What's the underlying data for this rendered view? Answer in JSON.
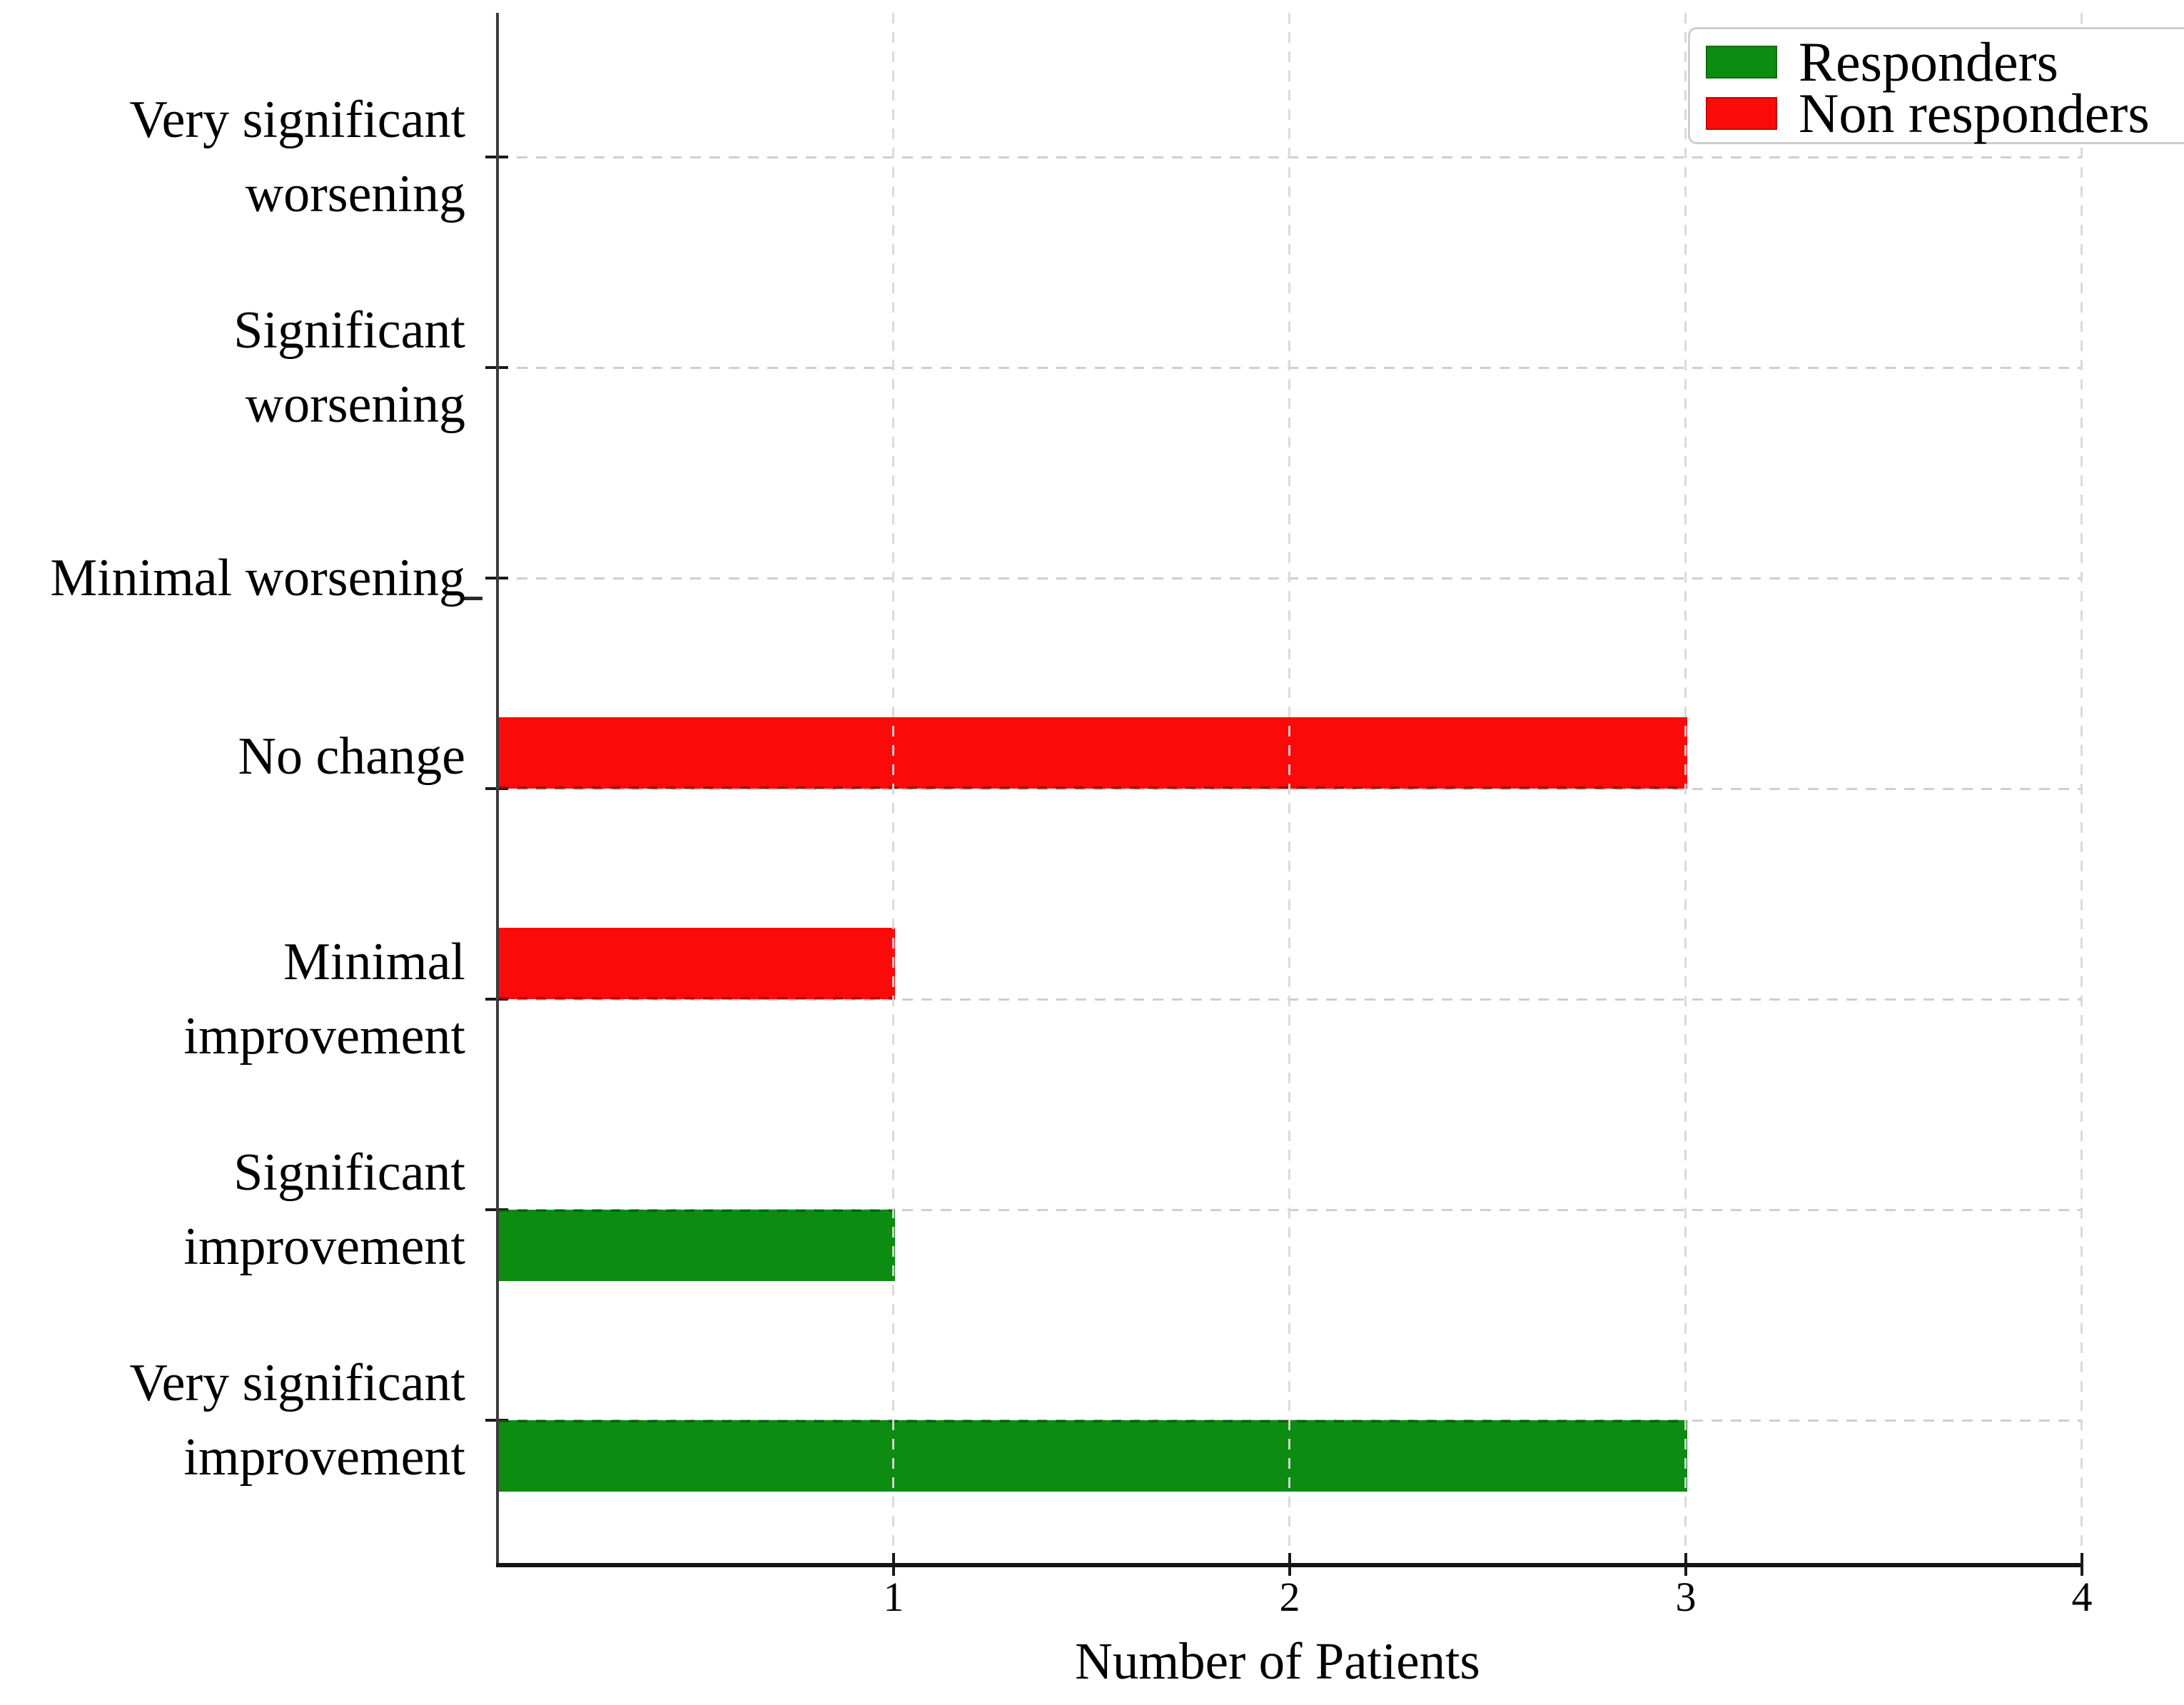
{
  "chart_data": {
    "type": "bar",
    "orientation": "horizontal",
    "title": "",
    "xlabel": "Number of Patients",
    "categories": [
      "Very significant worsening",
      "Significant worsening",
      "Minimal worsening",
      "No change",
      "Minimal improvement",
      "Significant improvement",
      "Very significant improvement"
    ],
    "series": [
      {
        "name": "Responders",
        "color": "#0C8C10",
        "values": [
          0,
          0,
          0,
          0,
          0,
          1,
          3
        ]
      },
      {
        "name": "Non responders",
        "color": "#FB0A0A",
        "values": [
          0,
          0,
          0,
          3,
          1,
          0,
          0
        ]
      }
    ],
    "xlim": [
      0,
      4
    ],
    "xticks": [
      1,
      2,
      3,
      4
    ],
    "grid": "dashed",
    "legend_position": "top-right"
  },
  "legend": {
    "items": [
      {
        "label": "Responders",
        "color": "#0C8C10"
      },
      {
        "label": "Non responders",
        "color": "#FB0A0A"
      }
    ]
  },
  "x_axis": {
    "label": "Number of Patients",
    "tick_labels": [
      "1",
      "2",
      "3",
      "4"
    ]
  },
  "y_axis": {
    "tick_labels": [
      "Very significant worsening",
      "Significant worsening",
      "Minimal worsening",
      "No change",
      "Minimal improvement",
      "Significant improvement",
      "Very significant improvement"
    ]
  }
}
